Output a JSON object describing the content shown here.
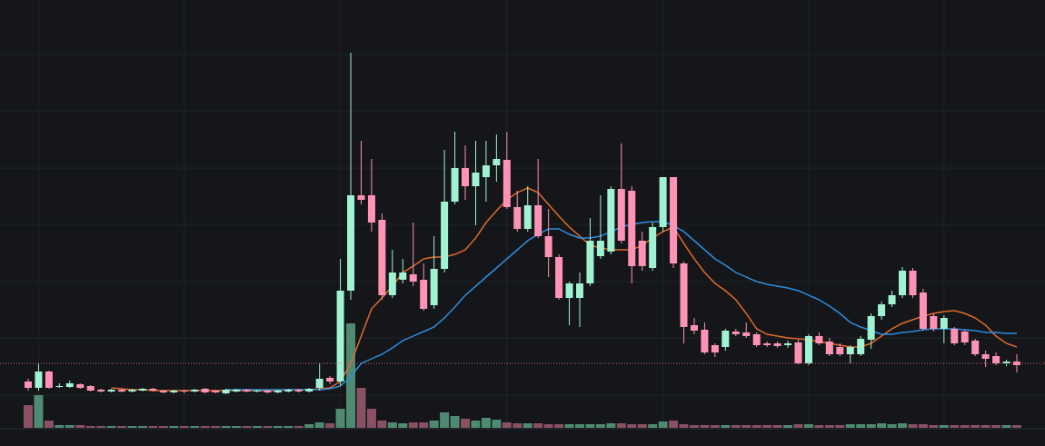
{
  "chart_data": {
    "type": "candlestick",
    "ylim": [
      0,
      491
    ],
    "volume_ylim": [
      0,
      471
    ],
    "ygrid": [
      431,
      369,
      306,
      244,
      181,
      119,
      56
    ],
    "xgrid": [
      1,
      15,
      30,
      46,
      61,
      75,
      88
    ],
    "up_color": "#a0f2d2",
    "down_color": "#ff93b6",
    "volume_up_color": "#4f8a72",
    "volume_down_color": "#8a5064",
    "price_line": {
      "value": 91,
      "color": "#b86a72"
    },
    "open": [
      71,
      64,
      82,
      65,
      65,
      68,
      66,
      62,
      60,
      62,
      60,
      61,
      63,
      61,
      59,
      61,
      60,
      63,
      61,
      58,
      60,
      62,
      60,
      61,
      59,
      60,
      62,
      60,
      64,
      75,
      71,
      171,
      276,
      276,
      249,
      166,
      183,
      189,
      183,
      155,
      195,
      269,
      306,
      286,
      296,
      309,
      315,
      263,
      239,
      265,
      231,
      208,
      163,
      163,
      179,
      209,
      214,
      283,
      281,
      226,
      196,
      241,
      296,
      201,
      133,
      128,
      111,
      109,
      126,
      125,
      123,
      113,
      113,
      111,
      114,
      91,
      121,
      115,
      109,
      101,
      101,
      117,
      143,
      156,
      166,
      193,
      169,
      143,
      129,
      129,
      126,
      116,
      101,
      99,
      91,
      93
    ],
    "high": [
      74,
      91,
      83,
      69,
      72,
      69,
      67,
      63,
      63,
      63,
      63,
      64,
      64,
      62,
      62,
      62,
      63,
      64,
      62,
      63,
      63,
      63,
      62,
      62,
      62,
      63,
      63,
      64,
      91,
      77,
      206,
      433,
      336,
      316,
      256,
      216,
      206,
      246,
      201,
      231,
      326,
      346,
      331,
      336,
      336,
      343,
      346,
      281,
      286,
      316,
      261,
      211,
      181,
      191,
      251,
      276,
      286,
      333,
      286,
      236,
      246,
      296,
      296,
      203,
      141,
      136,
      113,
      129,
      129,
      136,
      125,
      115,
      115,
      116,
      117,
      123,
      125,
      119,
      113,
      111,
      121,
      146,
      159,
      171,
      197,
      196,
      173,
      146,
      144,
      131,
      128,
      118,
      105,
      103,
      95,
      101
    ],
    "low": [
      61,
      61,
      63,
      64,
      64,
      63,
      60,
      59,
      59,
      59,
      59,
      60,
      60,
      58,
      58,
      58,
      59,
      58,
      58,
      57,
      59,
      59,
      59,
      58,
      58,
      59,
      59,
      59,
      61,
      68,
      66,
      161,
      266,
      236,
      161,
      163,
      179,
      176,
      149,
      151,
      191,
      266,
      271,
      243,
      269,
      291,
      261,
      236,
      236,
      229,
      186,
      161,
      133,
      131,
      176,
      206,
      211,
      223,
      179,
      193,
      193,
      236,
      196,
      113,
      123,
      101,
      98,
      105,
      121,
      119,
      109,
      109,
      108,
      108,
      90,
      89,
      111,
      99,
      99,
      91,
      99,
      107,
      139,
      153,
      163,
      163,
      127,
      126,
      113,
      111,
      111,
      99,
      87,
      89,
      88,
      81
    ],
    "close": [
      64,
      82,
      64,
      66,
      69,
      64,
      61,
      60,
      62,
      60,
      62,
      63,
      61,
      59,
      61,
      60,
      62,
      59,
      59,
      62,
      62,
      60,
      61,
      59,
      61,
      62,
      60,
      63,
      74,
      71,
      171,
      276,
      271,
      246,
      166,
      191,
      191,
      181,
      151,
      195,
      269,
      306,
      286,
      301,
      309,
      316,
      263,
      239,
      265,
      231,
      208,
      163,
      179,
      179,
      226,
      226,
      283,
      226,
      198,
      198,
      241,
      296,
      201,
      131,
      127,
      103,
      103,
      127,
      123,
      121,
      111,
      111,
      110,
      113,
      91,
      121,
      113,
      101,
      101,
      109,
      118,
      143,
      156,
      166,
      193,
      166,
      129,
      129,
      141,
      113,
      114,
      101,
      96,
      91,
      93,
      89
    ],
    "volume": [
      25,
      36,
      8,
      3,
      3,
      3,
      2,
      2,
      2,
      2,
      2,
      2,
      2,
      2,
      2,
      2,
      2,
      2,
      2,
      2,
      2,
      2,
      2,
      2,
      2,
      2,
      2,
      4,
      6,
      5,
      21,
      115,
      44,
      21,
      8,
      6,
      5,
      6,
      6,
      8,
      17,
      13,
      10,
      8,
      11,
      9,
      6,
      5,
      5,
      5,
      4,
      4,
      4,
      4,
      4,
      4,
      5,
      5,
      4,
      4,
      4,
      7,
      8,
      4,
      3,
      3,
      3,
      3,
      3,
      3,
      3,
      3,
      3,
      3,
      4,
      4,
      3,
      3,
      3,
      4,
      4,
      4,
      5,
      4,
      5,
      4,
      4,
      3,
      3,
      3,
      3,
      3,
      3,
      3,
      3,
      3
    ],
    "moving_averages": [
      {
        "color": "#e0692a",
        "values": [
          null,
          null,
          null,
          null,
          null,
          null,
          null,
          null,
          64,
          63,
          62,
          62,
          61,
          61,
          61,
          61,
          61,
          61,
          61,
          61,
          61,
          61,
          61,
          61,
          61,
          62,
          62,
          62,
          63,
          64,
          71,
          91,
          121,
          151,
          163,
          176,
          191,
          198,
          206,
          208,
          208,
          211,
          216,
          229,
          246,
          259,
          271,
          279,
          284,
          279,
          266,
          253,
          241,
          231,
          221,
          218,
          216,
          216,
          216,
          221,
          229,
          236,
          241,
          223,
          206,
          191,
          179,
          171,
          161,
          146,
          129,
          123,
          121,
          119,
          118,
          117,
          115,
          113,
          111,
          109,
          109,
          113,
          121,
          129,
          135,
          139,
          143,
          146,
          148,
          149,
          146,
          141,
          133,
          121,
          113,
          109
        ]
      },
      {
        "color": "#2b8de0",
        "values": [
          null,
          null,
          null,
          null,
          null,
          null,
          null,
          null,
          null,
          null,
          null,
          null,
          null,
          null,
          null,
          null,
          null,
          null,
          null,
          62,
          62,
          62,
          62,
          62,
          62,
          62,
          62,
          62,
          62,
          63,
          66,
          76,
          91,
          96,
          101,
          108,
          116,
          121,
          126,
          131,
          141,
          153,
          166,
          176,
          186,
          196,
          206,
          216,
          226,
          233,
          239,
          239,
          233,
          229,
          229,
          231,
          236,
          241,
          244,
          246,
          247,
          247,
          243,
          236,
          226,
          216,
          206,
          199,
          191,
          186,
          181,
          178,
          176,
          174,
          171,
          166,
          161,
          154,
          146,
          136,
          131,
          127,
          123,
          123,
          125,
          126,
          128,
          129,
          129,
          129,
          128,
          127,
          125,
          125,
          124,
          124
        ]
      }
    ]
  }
}
